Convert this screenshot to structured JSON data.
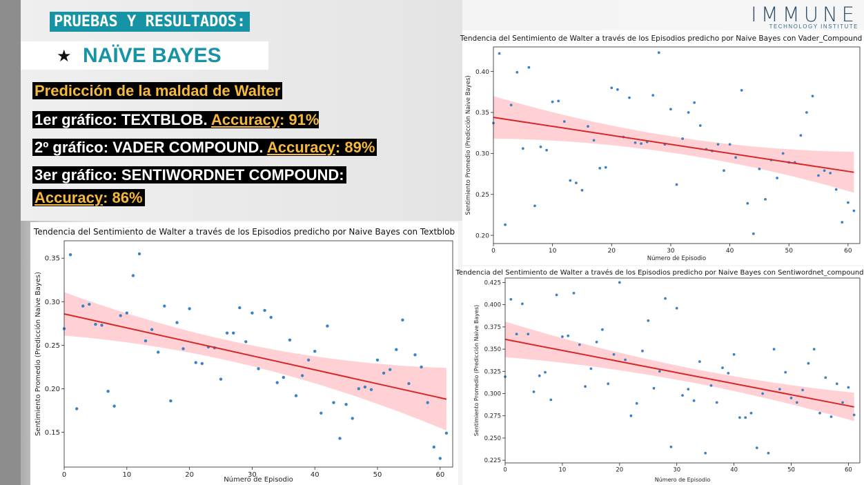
{
  "header": {
    "title": "PRUEBAS Y RESULTADOS:",
    "subtitle_star": "★",
    "subtitle": "NAÏVE BAYES",
    "logo_big": "IMMUNE",
    "logo_small": "TECHNOLOGY INSTITUTE"
  },
  "text_lines": {
    "l1": "Predicción de la maldad de Walter",
    "l2_a": "1er gráfico: TEXTBLOB. ",
    "l2_b": "Accuracy",
    "l2_c": ": 91%",
    "l3_a": "2º gráfico: VADER COMPOUND. ",
    "l3_b": "Accuracy",
    "l3_c": ": 89%",
    "l4": "3er gráfico: SENTIWORDNET COMPOUND:",
    "l5_b": "Accuracy",
    "l5_c": ": 86%"
  },
  "colors": {
    "accent_teal": "#1693a5",
    "accent_yellow": "#f6b93b",
    "points": "#3b82c4",
    "regression": "#d62728",
    "band": "#ff9aa2"
  },
  "chart_data": [
    {
      "id": "textblob",
      "type": "scatter",
      "title": "Tendencia del Sentimiento de Walter a través de los Episodios predicho por Naive Bayes con Textblob",
      "xlabel": "Número de Episodio",
      "ylabel": "Sentimiento Promedio (Predicción Naive Bayes)",
      "xlim": [
        0,
        62
      ],
      "ylim": [
        0.11,
        0.37
      ],
      "xticks": [
        0,
        10,
        20,
        30,
        40,
        50,
        60
      ],
      "yticks": [
        0.15,
        0.2,
        0.25,
        0.3,
        0.35
      ],
      "ytick_labels": [
        "0.15",
        "0.20",
        "0.25",
        "0.30",
        "0.35"
      ],
      "regression": {
        "x0": 0,
        "y0": 0.286,
        "x1": 61,
        "y1": 0.188,
        "band_start": 0.025,
        "band_mid": 0.012,
        "band_end": 0.036
      },
      "points": [
        [
          0,
          0.269
        ],
        [
          1,
          0.354
        ],
        [
          2,
          0.177
        ],
        [
          3,
          0.295
        ],
        [
          4,
          0.297
        ],
        [
          5,
          0.274
        ],
        [
          6,
          0.273
        ],
        [
          7,
          0.197
        ],
        [
          8,
          0.18
        ],
        [
          9,
          0.284
        ],
        [
          10,
          0.287
        ],
        [
          11,
          0.33
        ],
        [
          12,
          0.355
        ],
        [
          13,
          0.255
        ],
        [
          14,
          0.268
        ],
        [
          15,
          0.242
        ],
        [
          16,
          0.295
        ],
        [
          17,
          0.186
        ],
        [
          18,
          0.276
        ],
        [
          19,
          0.246
        ],
        [
          20,
          0.292
        ],
        [
          21,
          0.23
        ],
        [
          22,
          0.229
        ],
        [
          23,
          0.248
        ],
        [
          24,
          0.247
        ],
        [
          25,
          0.211
        ],
        [
          26,
          0.264
        ],
        [
          27,
          0.264
        ],
        [
          28,
          0.293
        ],
        [
          29,
          0.254
        ],
        [
          30,
          0.287
        ],
        [
          31,
          0.223
        ],
        [
          32,
          0.29
        ],
        [
          33,
          0.282
        ],
        [
          34,
          0.207
        ],
        [
          35,
          0.213
        ],
        [
          36,
          0.256
        ],
        [
          37,
          0.192
        ],
        [
          38,
          0.215
        ],
        [
          39,
          0.233
        ],
        [
          40,
          0.243
        ],
        [
          41,
          0.172
        ],
        [
          42,
          0.272
        ],
        [
          43,
          0.184
        ],
        [
          44,
          0.143
        ],
        [
          45,
          0.182
        ],
        [
          46,
          0.166
        ],
        [
          47,
          0.2
        ],
        [
          48,
          0.202
        ],
        [
          49,
          0.199
        ],
        [
          50,
          0.233
        ],
        [
          51,
          0.218
        ],
        [
          52,
          0.222
        ],
        [
          53,
          0.245
        ],
        [
          54,
          0.279
        ],
        [
          55,
          0.206
        ],
        [
          56,
          0.239
        ],
        [
          57,
          0.225
        ],
        [
          58,
          0.184
        ],
        [
          59,
          0.133
        ],
        [
          60,
          0.12
        ],
        [
          61,
          0.149
        ]
      ]
    },
    {
      "id": "vader",
      "type": "scatter",
      "title": "Tendencia del Sentimiento de Walter a través de los Episodios predicho por Naive Bayes con Vader_Compound",
      "xlabel": "Número de Episodio",
      "ylabel": "Sentimiento Promedio (Predicción Naive Bayes)",
      "xlim": [
        0,
        62
      ],
      "ylim": [
        0.19,
        0.43
      ],
      "xticks": [
        0,
        10,
        20,
        30,
        40,
        50,
        60
      ],
      "yticks": [
        0.2,
        0.25,
        0.3,
        0.35,
        0.4
      ],
      "ytick_labels": [
        "0.20",
        "0.25",
        "0.30",
        "0.35",
        "0.40"
      ],
      "regression": {
        "x0": 0,
        "y0": 0.344,
        "x1": 61,
        "y1": 0.277,
        "band_start": 0.026,
        "band_mid": 0.01,
        "band_end": 0.025
      },
      "points": [
        [
          0,
          0.337
        ],
        [
          1,
          0.422
        ],
        [
          2,
          0.213
        ],
        [
          3,
          0.359
        ],
        [
          4,
          0.399
        ],
        [
          5,
          0.306
        ],
        [
          6,
          0.405
        ],
        [
          7,
          0.236
        ],
        [
          8,
          0.308
        ],
        [
          9,
          0.304
        ],
        [
          10,
          0.363
        ],
        [
          11,
          0.364
        ],
        [
          12,
          0.339
        ],
        [
          13,
          0.267
        ],
        [
          14,
          0.264
        ],
        [
          15,
          0.255
        ],
        [
          16,
          0.333
        ],
        [
          17,
          0.316
        ],
        [
          18,
          0.282
        ],
        [
          19,
          0.283
        ],
        [
          20,
          0.38
        ],
        [
          21,
          0.378
        ],
        [
          22,
          0.32
        ],
        [
          23,
          0.368
        ],
        [
          24,
          0.313
        ],
        [
          25,
          0.312
        ],
        [
          26,
          0.314
        ],
        [
          27,
          0.371
        ],
        [
          28,
          0.423
        ],
        [
          29,
          0.311
        ],
        [
          30,
          0.354
        ],
        [
          31,
          0.262
        ],
        [
          32,
          0.318
        ],
        [
          33,
          0.35
        ],
        [
          34,
          0.362
        ],
        [
          35,
          0.334
        ],
        [
          36,
          0.305
        ],
        [
          37,
          0.303
        ],
        [
          38,
          0.311
        ],
        [
          39,
          0.279
        ],
        [
          40,
          0.311
        ],
        [
          41,
          0.295
        ],
        [
          42,
          0.377
        ],
        [
          43,
          0.239
        ],
        [
          44,
          0.202
        ],
        [
          45,
          0.281
        ],
        [
          46,
          0.244
        ],
        [
          47,
          0.292
        ],
        [
          48,
          0.27
        ],
        [
          49,
          0.3
        ],
        [
          50,
          0.289
        ],
        [
          51,
          0.289
        ],
        [
          52,
          0.322
        ],
        [
          53,
          0.35
        ],
        [
          54,
          0.37
        ],
        [
          55,
          0.273
        ],
        [
          56,
          0.279
        ],
        [
          57,
          0.276
        ],
        [
          58,
          0.256
        ],
        [
          59,
          0.216
        ],
        [
          60,
          0.24
        ],
        [
          61,
          0.23
        ]
      ]
    },
    {
      "id": "sentiwordnet",
      "type": "scatter",
      "title": "Tendencia del Sentimiento de Walter a través de los Episodios predicho por Naive Bayes con Sentiwordnet_compound",
      "xlabel": "Número de Episodio",
      "ylabel": "Sentimiento Promedio (Predicción Naive Bayes)",
      "xlim": [
        0,
        62
      ],
      "ylim": [
        0.222,
        0.43
      ],
      "xticks": [
        0,
        10,
        20,
        30,
        40,
        50,
        60
      ],
      "yticks": [
        0.225,
        0.25,
        0.275,
        0.3,
        0.325,
        0.35,
        0.375,
        0.4,
        0.425
      ],
      "ytick_labels": [
        "0.225",
        "0.250",
        "0.275",
        "0.300",
        "0.325",
        "0.350",
        "0.375",
        "0.400",
        "0.425"
      ],
      "regression": {
        "x0": 0,
        "y0": 0.361,
        "x1": 61,
        "y1": 0.285,
        "band_start": 0.02,
        "band_mid": 0.008,
        "band_end": 0.016
      },
      "points": [
        [
          0,
          0.319
        ],
        [
          1,
          0.406
        ],
        [
          2,
          0.367
        ],
        [
          3,
          0.401
        ],
        [
          4,
          0.367
        ],
        [
          5,
          0.302
        ],
        [
          6,
          0.32
        ],
        [
          7,
          0.324
        ],
        [
          8,
          0.293
        ],
        [
          9,
          0.411
        ],
        [
          10,
          0.364
        ],
        [
          11,
          0.365
        ],
        [
          12,
          0.413
        ],
        [
          13,
          0.355
        ],
        [
          14,
          0.308
        ],
        [
          15,
          0.328
        ],
        [
          16,
          0.358
        ],
        [
          17,
          0.372
        ],
        [
          18,
          0.311
        ],
        [
          19,
          0.344
        ],
        [
          20,
          0.425
        ],
        [
          21,
          0.338
        ],
        [
          22,
          0.275
        ],
        [
          23,
          0.289
        ],
        [
          24,
          0.348
        ],
        [
          25,
          0.382
        ],
        [
          26,
          0.306
        ],
        [
          27,
          0.325
        ],
        [
          28,
          0.407
        ],
        [
          29,
          0.24
        ],
        [
          30,
          0.396
        ],
        [
          31,
          0.298
        ],
        [
          32,
          0.305
        ],
        [
          33,
          0.292
        ],
        [
          34,
          0.336
        ],
        [
          35,
          0.233
        ],
        [
          36,
          0.309
        ],
        [
          37,
          0.29
        ],
        [
          38,
          0.329
        ],
        [
          39,
          0.323
        ],
        [
          40,
          0.344
        ],
        [
          41,
          0.273
        ],
        [
          42,
          0.273
        ],
        [
          43,
          0.278
        ],
        [
          44,
          0.239
        ],
        [
          45,
          0.3
        ],
        [
          46,
          0.233
        ],
        [
          47,
          0.35
        ],
        [
          48,
          0.305
        ],
        [
          49,
          0.324
        ],
        [
          50,
          0.295
        ],
        [
          51,
          0.29
        ],
        [
          52,
          0.304
        ],
        [
          53,
          0.334
        ],
        [
          54,
          0.35
        ],
        [
          55,
          0.278
        ],
        [
          56,
          0.318
        ],
        [
          57,
          0.274
        ],
        [
          58,
          0.311
        ],
        [
          59,
          0.29
        ],
        [
          60,
          0.307
        ],
        [
          61,
          0.276
        ]
      ]
    }
  ]
}
